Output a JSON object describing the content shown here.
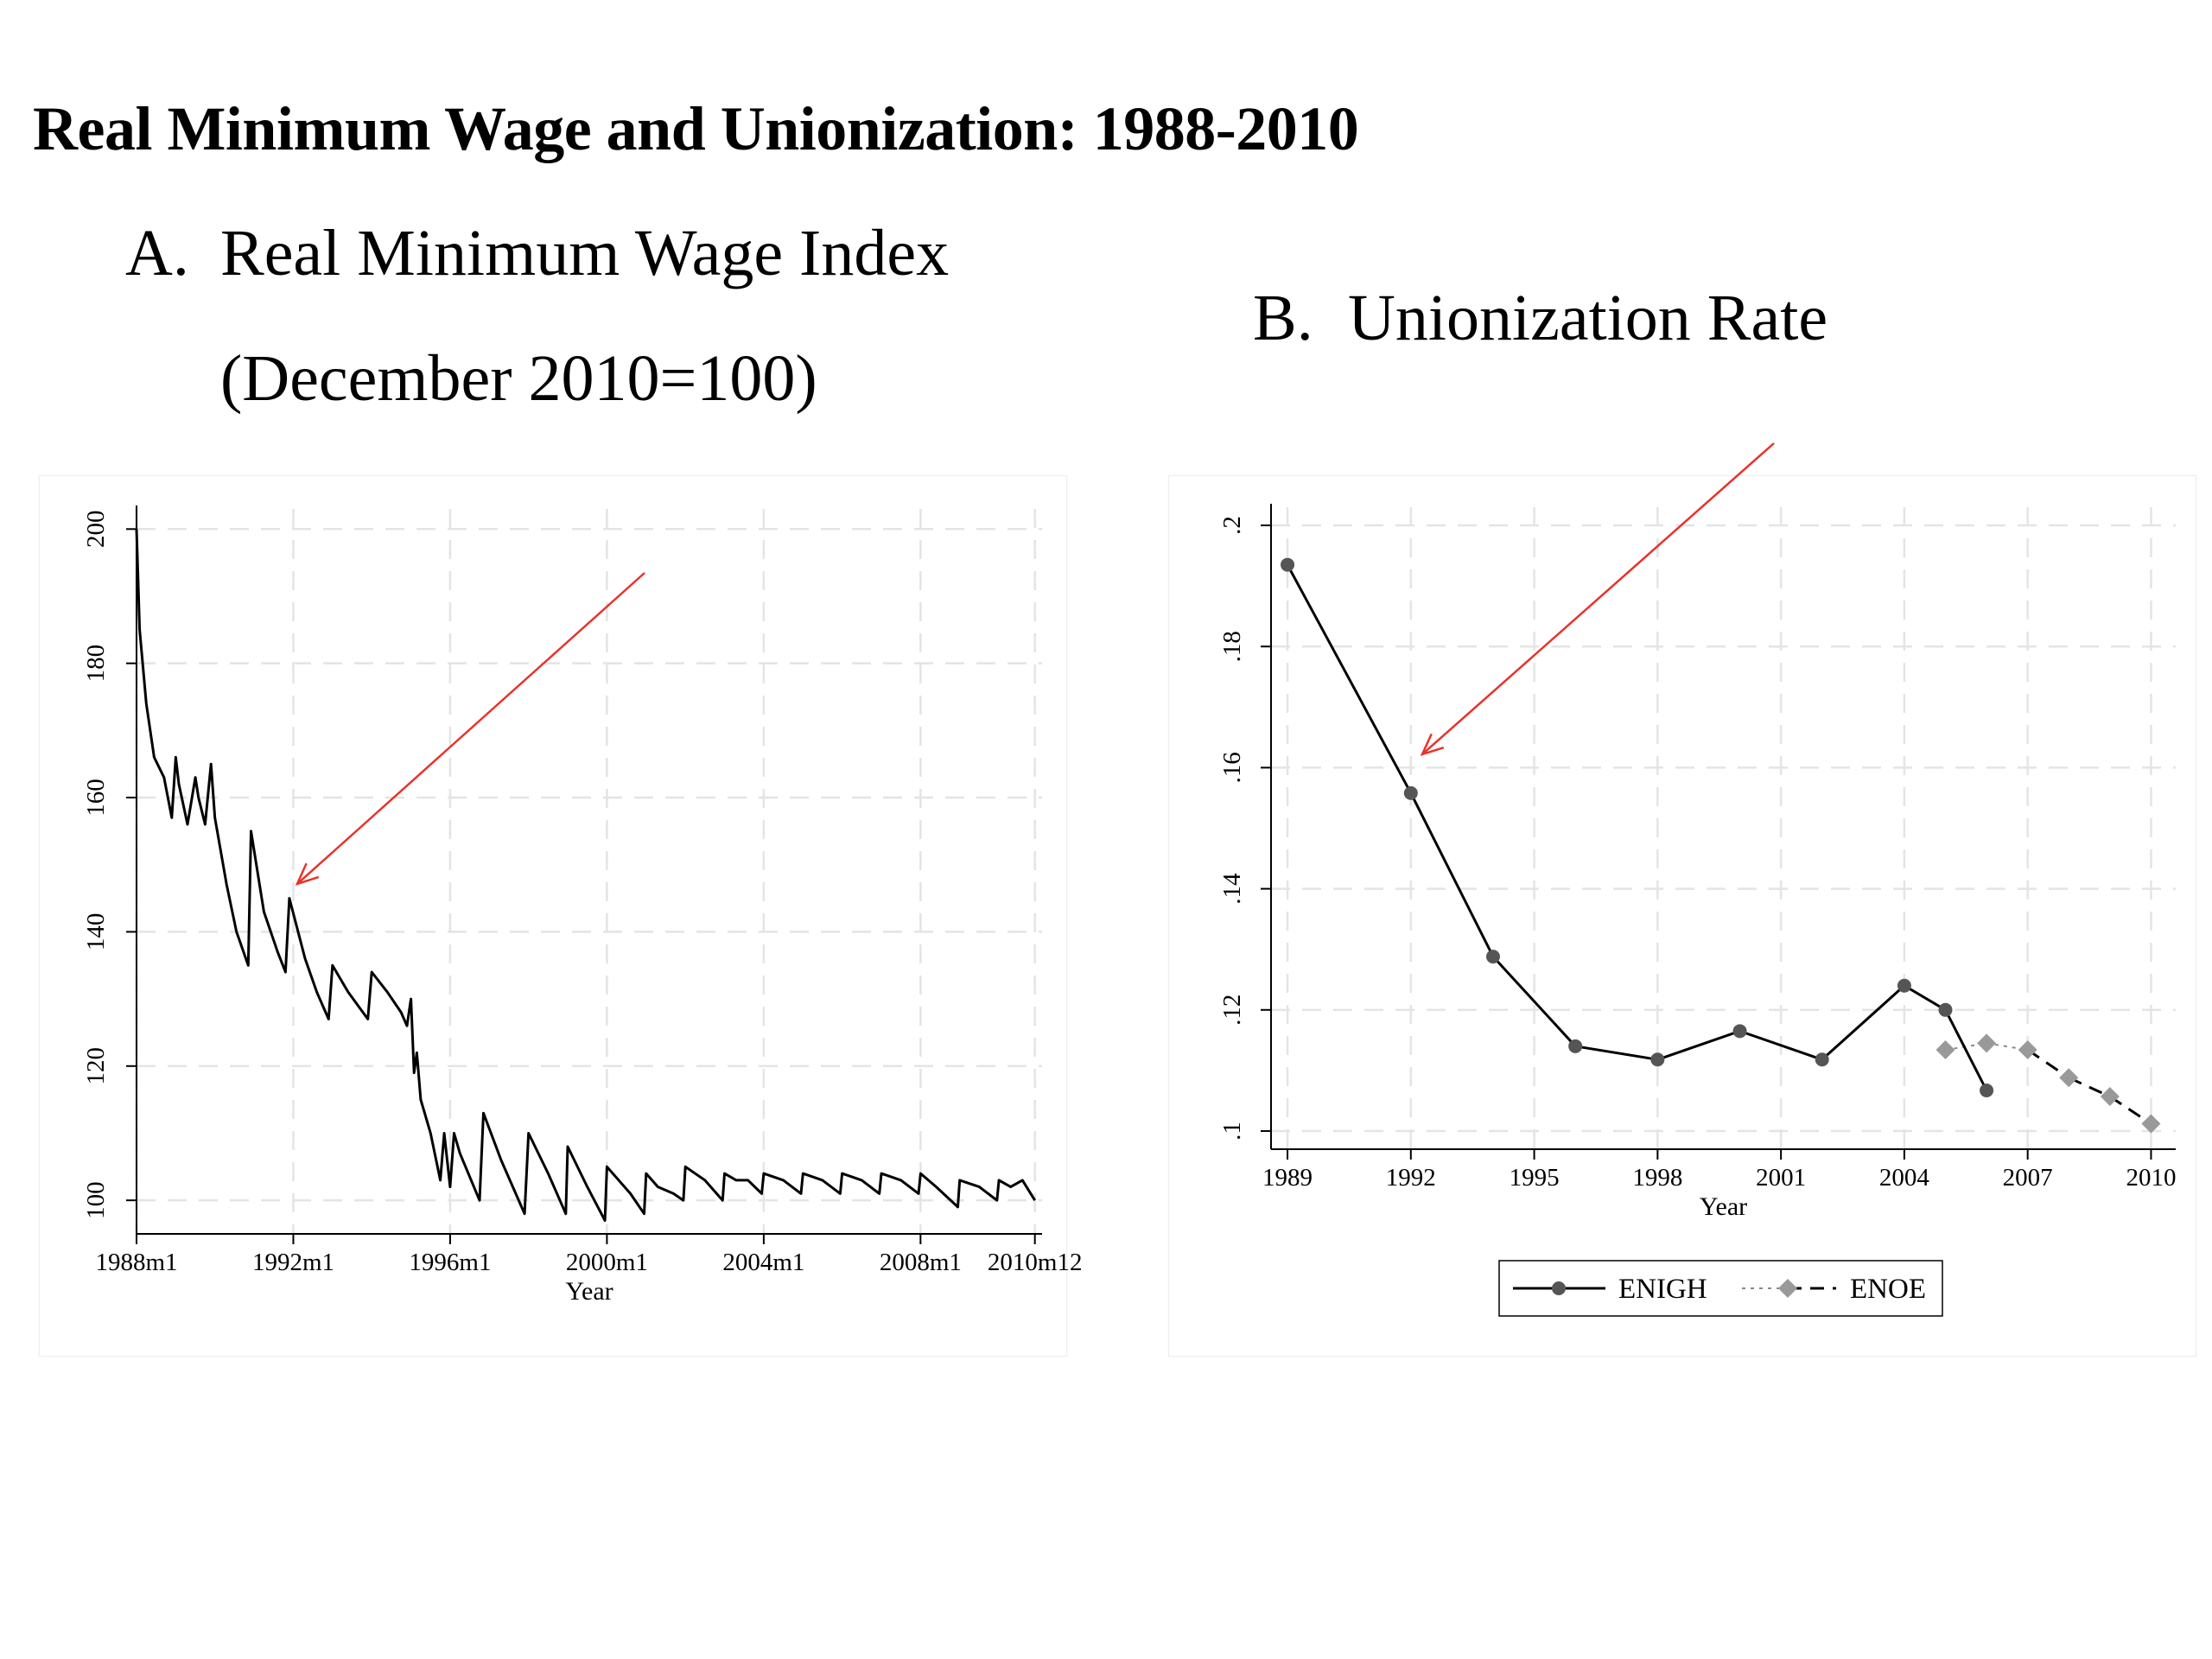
{
  "title": "Real Minimum Wage and Unionization: 1988-2010",
  "panel_a": {
    "letter": "A.",
    "heading": "Real Minimum Wage Index",
    "subheading": "(December 2010=100)"
  },
  "panel_b": {
    "letter": "B.",
    "heading": "Unionization Rate"
  },
  "chart_data": [
    {
      "type": "line",
      "xlabel": "Year",
      "ylabel": "",
      "xlim": [
        1988.0,
        2011.1
      ],
      "ylim": [
        95,
        203
      ],
      "x_ticks": [
        1988.0,
        1992.0,
        1996.0,
        2000.0,
        2004.0,
        2008.0,
        2010.917
      ],
      "x_tick_labels": [
        "1988m1",
        "1992m1",
        "1996m1",
        "2000m1",
        "2004m1",
        "2008m1",
        "2010m12"
      ],
      "y_ticks": [
        100,
        120,
        140,
        160,
        180,
        200
      ],
      "y_tick_labels": [
        "100",
        "120",
        "140",
        "160",
        "180",
        "200"
      ],
      "grid": true,
      "series": [
        {
          "color": "#000000",
          "x": [
            1988.0,
            1988.08,
            1988.25,
            1988.45,
            1988.7,
            1988.9,
            1989.0,
            1989.08,
            1989.3,
            1989.5,
            1989.58,
            1989.75,
            1989.9,
            1990.0,
            1990.3,
            1990.55,
            1990.85,
            1990.92,
            1991.25,
            1991.6,
            1991.8,
            1991.9,
            1992.3,
            1992.6,
            1992.9,
            1993.0,
            1993.4,
            1993.9,
            1994.0,
            1994.4,
            1994.75,
            1994.9,
            1995.0,
            1995.08,
            1995.15,
            1995.25,
            1995.5,
            1995.75,
            1995.85,
            1996.0,
            1996.1,
            1996.25,
            1996.75,
            1996.85,
            1997.3,
            1997.6,
            1997.9,
            1998.0,
            1998.5,
            1998.95,
            1999.0,
            1999.5,
            1999.95,
            2000.0,
            2000.6,
            2000.95,
            2001.0,
            2001.3,
            2001.7,
            2001.95,
            2002.0,
            2002.5,
            2002.95,
            2003.0,
            2003.3,
            2003.6,
            2003.95,
            2004.0,
            2004.5,
            2004.95,
            2005.0,
            2005.5,
            2005.95,
            2006.0,
            2006.5,
            2006.95,
            2007.0,
            2007.5,
            2007.95,
            2008.0,
            2008.4,
            2008.95,
            2009.0,
            2009.5,
            2009.95,
            2010.0,
            2010.3,
            2010.6,
            2010.917
          ],
          "y": [
            200,
            185,
            174,
            166,
            163,
            157,
            166,
            162,
            156,
            163,
            160,
            156,
            165,
            157,
            147,
            140,
            135,
            155,
            143,
            137,
            134,
            145,
            136,
            131,
            127,
            135,
            131,
            127,
            134,
            131,
            128,
            126,
            130,
            119,
            122,
            115,
            110,
            103,
            110,
            102,
            110,
            107,
            100,
            113,
            106,
            102,
            98,
            110,
            104,
            98,
            108,
            102,
            97,
            105,
            101,
            98,
            104,
            102,
            101,
            100,
            105,
            103,
            100,
            104,
            103,
            103,
            101,
            104,
            103,
            101,
            104,
            103,
            101,
            104,
            103,
            101,
            104,
            103,
            101,
            104,
            102,
            99,
            103,
            102,
            100,
            103,
            102,
            103,
            100
          ]
        }
      ]
    },
    {
      "type": "line",
      "xlabel": "Year",
      "ylabel": "",
      "xlim": [
        1988.6,
        2010.6
      ],
      "ylim": [
        0.097,
        0.203
      ],
      "x_ticks": [
        1989,
        1992,
        1995,
        1998,
        2001,
        2004,
        2007,
        2010
      ],
      "x_tick_labels": [
        "1989",
        "1992",
        "1995",
        "1998",
        "2001",
        "2004",
        "2007",
        "2010"
      ],
      "y_ticks": [
        0.1,
        0.12,
        0.14,
        0.16,
        0.18,
        0.2
      ],
      "y_tick_labels": [
        ".1",
        ".12",
        ".14",
        ".16",
        ".18",
        ".2"
      ],
      "grid": true,
      "legend_position": "bottom-center",
      "series": [
        {
          "name": "ENIGH",
          "color": "#000000",
          "marker": "circle",
          "line_style": "solid",
          "x": [
            1989,
            1992,
            1994,
            1996,
            1998,
            2000,
            2002,
            2004,
            2005,
            2006
          ],
          "y": [
            0.1935,
            0.1558,
            0.1288,
            0.114,
            0.1118,
            0.1165,
            0.1118,
            0.124,
            0.12,
            0.1067
          ]
        },
        {
          "name": "ENOE",
          "color": "#999999",
          "marker": "diamond",
          "line_style": "dashed",
          "x": [
            2005,
            2006,
            2007,
            2008,
            2009,
            2010
          ],
          "y": [
            0.1134,
            0.1145,
            0.1134,
            0.1088,
            0.1057,
            0.1012
          ]
        }
      ]
    }
  ],
  "annotation_color": "#e8322a"
}
